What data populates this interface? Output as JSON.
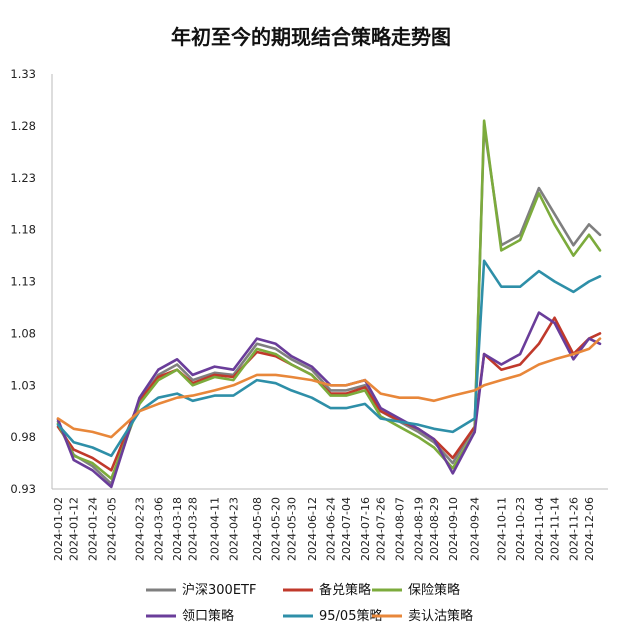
{
  "chart_data": {
    "type": "line",
    "title": "年初至今的期现结合策略走势图",
    "xlabel": "",
    "ylabel": "",
    "ylim": [
      0.93,
      1.33
    ],
    "yticks": [
      "0.93",
      "0.98",
      "1.03",
      "1.08",
      "1.13",
      "1.18",
      "1.23",
      "1.28",
      "1.33"
    ],
    "x_tick_labels": [
      "2024-01-02",
      "2024-01-12",
      "2024-01-24",
      "2024-02-05",
      "2024-02-23",
      "2024-03-06",
      "2024-03-18",
      "2024-03-28",
      "2024-04-11",
      "2024-04-23",
      "2024-05-08",
      "2024-05-20",
      "2024-05-30",
      "2024-06-12",
      "2024-06-24",
      "2024-07-04",
      "2024-07-16",
      "2024-07-26",
      "2024-08-07",
      "2024-08-19",
      "2024-08-29",
      "2024-09-10",
      "2024-09-24",
      "2024-10-11",
      "2024-10-23",
      "2024-11-04",
      "2024-11-14",
      "2024-11-26",
      "2024-12-06"
    ],
    "grid": false,
    "legend_position": "bottom",
    "series": [
      {
        "name": "沪深300ETF",
        "color": "#7f7f7f",
        "x": [
          "2024-01-02",
          "2024-01-12",
          "2024-01-24",
          "2024-02-05",
          "2024-02-23",
          "2024-03-06",
          "2024-03-18",
          "2024-03-28",
          "2024-04-11",
          "2024-04-23",
          "2024-05-08",
          "2024-05-20",
          "2024-05-30",
          "2024-06-12",
          "2024-06-24",
          "2024-07-04",
          "2024-07-16",
          "2024-07-26",
          "2024-08-07",
          "2024-08-19",
          "2024-08-29",
          "2024-09-10",
          "2024-09-24",
          "2024-09-30",
          "2024-10-11",
          "2024-10-23",
          "2024-11-04",
          "2024-11-14",
          "2024-11-26",
          "2024-12-06",
          "2024-12-13"
        ],
        "values": [
          0.995,
          0.963,
          0.952,
          0.935,
          1.015,
          1.04,
          1.05,
          1.035,
          1.042,
          1.04,
          1.07,
          1.065,
          1.055,
          1.045,
          1.025,
          1.025,
          1.03,
          1.005,
          0.995,
          0.985,
          0.975,
          0.955,
          0.99,
          1.28,
          1.165,
          1.175,
          1.22,
          1.195,
          1.165,
          1.185,
          1.175
        ]
      },
      {
        "name": "备兑策略",
        "color": "#c0392b",
        "x": [
          "2024-01-02",
          "2024-01-12",
          "2024-01-24",
          "2024-02-05",
          "2024-02-23",
          "2024-03-06",
          "2024-03-18",
          "2024-03-28",
          "2024-04-11",
          "2024-04-23",
          "2024-05-08",
          "2024-05-20",
          "2024-05-30",
          "2024-06-12",
          "2024-06-24",
          "2024-07-04",
          "2024-07-16",
          "2024-07-26",
          "2024-08-07",
          "2024-08-19",
          "2024-08-29",
          "2024-09-10",
          "2024-09-24",
          "2024-09-30",
          "2024-10-11",
          "2024-10-23",
          "2024-11-04",
          "2024-11-14",
          "2024-11-26",
          "2024-12-06",
          "2024-12-13"
        ],
        "values": [
          0.99,
          0.968,
          0.96,
          0.948,
          1.015,
          1.038,
          1.045,
          1.032,
          1.04,
          1.038,
          1.062,
          1.058,
          1.05,
          1.04,
          1.022,
          1.022,
          1.028,
          1.005,
          0.996,
          0.988,
          0.978,
          0.96,
          0.99,
          1.06,
          1.045,
          1.05,
          1.07,
          1.095,
          1.06,
          1.075,
          1.08
        ]
      },
      {
        "name": "保险策略",
        "color": "#7cab3c",
        "x": [
          "2024-01-02",
          "2024-01-12",
          "2024-01-24",
          "2024-02-05",
          "2024-02-23",
          "2024-03-06",
          "2024-03-18",
          "2024-03-28",
          "2024-04-11",
          "2024-04-23",
          "2024-05-08",
          "2024-05-20",
          "2024-05-30",
          "2024-06-12",
          "2024-06-24",
          "2024-07-04",
          "2024-07-16",
          "2024-07-26",
          "2024-08-07",
          "2024-08-19",
          "2024-08-29",
          "2024-09-10",
          "2024-09-24",
          "2024-09-30",
          "2024-10-11",
          "2024-10-23",
          "2024-11-04",
          "2024-11-14",
          "2024-11-26",
          "2024-12-06",
          "2024-12-13"
        ],
        "values": [
          0.993,
          0.962,
          0.955,
          0.94,
          1.012,
          1.035,
          1.045,
          1.03,
          1.038,
          1.035,
          1.065,
          1.06,
          1.05,
          1.04,
          1.02,
          1.02,
          1.025,
          1.0,
          0.99,
          0.98,
          0.97,
          0.95,
          0.985,
          1.285,
          1.16,
          1.17,
          1.215,
          1.185,
          1.155,
          1.175,
          1.16
        ]
      },
      {
        "name": "领口策略",
        "color": "#6a3d9a",
        "x": [
          "2024-01-02",
          "2024-01-12",
          "2024-01-24",
          "2024-02-05",
          "2024-02-23",
          "2024-03-06",
          "2024-03-18",
          "2024-03-28",
          "2024-04-11",
          "2024-04-23",
          "2024-05-08",
          "2024-05-20",
          "2024-05-30",
          "2024-06-12",
          "2024-06-24",
          "2024-07-04",
          "2024-07-16",
          "2024-07-26",
          "2024-08-07",
          "2024-08-19",
          "2024-08-29",
          "2024-09-10",
          "2024-09-24",
          "2024-09-30",
          "2024-10-11",
          "2024-10-23",
          "2024-11-04",
          "2024-11-14",
          "2024-11-26",
          "2024-12-06",
          "2024-12-13"
        ],
        "values": [
          0.997,
          0.958,
          0.948,
          0.932,
          1.018,
          1.045,
          1.055,
          1.04,
          1.048,
          1.045,
          1.075,
          1.07,
          1.058,
          1.048,
          1.03,
          1.03,
          1.035,
          1.008,
          0.998,
          0.988,
          0.978,
          0.945,
          0.985,
          1.06,
          1.05,
          1.06,
          1.1,
          1.09,
          1.055,
          1.075,
          1.07
        ]
      },
      {
        "name": "95/05策略",
        "color": "#2e8fa8",
        "x": [
          "2024-01-02",
          "2024-01-12",
          "2024-01-24",
          "2024-02-05",
          "2024-02-23",
          "2024-03-06",
          "2024-03-18",
          "2024-03-28",
          "2024-04-11",
          "2024-04-23",
          "2024-05-08",
          "2024-05-20",
          "2024-05-30",
          "2024-06-12",
          "2024-06-24",
          "2024-07-04",
          "2024-07-16",
          "2024-07-26",
          "2024-08-07",
          "2024-08-19",
          "2024-08-29",
          "2024-09-10",
          "2024-09-24",
          "2024-09-30",
          "2024-10-11",
          "2024-10-23",
          "2024-11-04",
          "2024-11-14",
          "2024-11-26",
          "2024-12-06",
          "2024-12-13"
        ],
        "values": [
          0.992,
          0.975,
          0.97,
          0.962,
          1.005,
          1.018,
          1.022,
          1.015,
          1.02,
          1.02,
          1.035,
          1.032,
          1.025,
          1.018,
          1.008,
          1.008,
          1.012,
          0.998,
          0.995,
          0.992,
          0.988,
          0.985,
          0.998,
          1.15,
          1.125,
          1.125,
          1.14,
          1.13,
          1.12,
          1.13,
          1.135
        ]
      },
      {
        "name": "卖认沽策略",
        "color": "#e8873a",
        "x": [
          "2024-01-02",
          "2024-01-12",
          "2024-01-24",
          "2024-02-05",
          "2024-02-23",
          "2024-03-06",
          "2024-03-18",
          "2024-03-28",
          "2024-04-11",
          "2024-04-23",
          "2024-05-08",
          "2024-05-20",
          "2024-05-30",
          "2024-06-12",
          "2024-06-24",
          "2024-07-04",
          "2024-07-16",
          "2024-07-26",
          "2024-08-07",
          "2024-08-19",
          "2024-08-29",
          "2024-09-10",
          "2024-09-24",
          "2024-09-30",
          "2024-10-11",
          "2024-10-23",
          "2024-11-04",
          "2024-11-14",
          "2024-11-26",
          "2024-12-06",
          "2024-12-13"
        ],
        "values": [
          0.998,
          0.988,
          0.985,
          0.98,
          1.005,
          1.012,
          1.018,
          1.02,
          1.025,
          1.03,
          1.04,
          1.04,
          1.038,
          1.035,
          1.03,
          1.03,
          1.035,
          1.022,
          1.018,
          1.018,
          1.015,
          1.02,
          1.025,
          1.03,
          1.035,
          1.04,
          1.05,
          1.055,
          1.06,
          1.065,
          1.075
        ]
      }
    ]
  }
}
